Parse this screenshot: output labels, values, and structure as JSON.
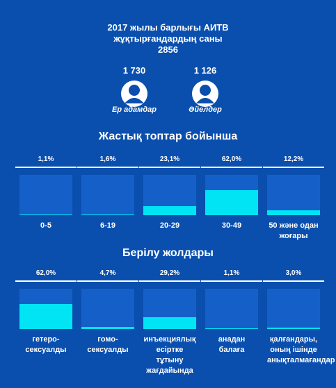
{
  "header": {
    "title_lines": [
      "2017 жылы барлығы АИТВ",
      "жұқтырғандардың саны"
    ],
    "total": "2856",
    "men": {
      "count": "1 730",
      "label": "Ер адамдар"
    },
    "women": {
      "count": "1 126",
      "label": "Әйелдер"
    }
  },
  "chart_data": [
    {
      "type": "bar",
      "title": "Жастық топтар бойынша",
      "categories": [
        "0-5",
        "6-19",
        "20-29",
        "30-49",
        "50 және одан жоғары"
      ],
      "values": [
        1.1,
        1.6,
        23.1,
        62.0,
        12.2
      ],
      "value_labels": [
        "1,1%",
        "1,6%",
        "23,1%",
        "62,0%",
        "12,2%"
      ],
      "ylim": [
        0,
        100
      ],
      "color": "#00e4f4"
    },
    {
      "type": "bar",
      "title": "Берілу жолдары",
      "categories": [
        "гетеро-сексуалды",
        "гомо-сексуалды",
        "инъекциялық есірткe тұтыну жағдайында",
        "анадан балаға",
        "қалғандары, оның ішінде анықталмағандар"
      ],
      "values": [
        62.0,
        4.7,
        29.2,
        1.1,
        3.0
      ],
      "value_labels": [
        "62,0%",
        "4,7%",
        "29,2%",
        "1,1%",
        "3,0%"
      ],
      "ylim": [
        0,
        100
      ],
      "color": "#00e4f4"
    }
  ]
}
